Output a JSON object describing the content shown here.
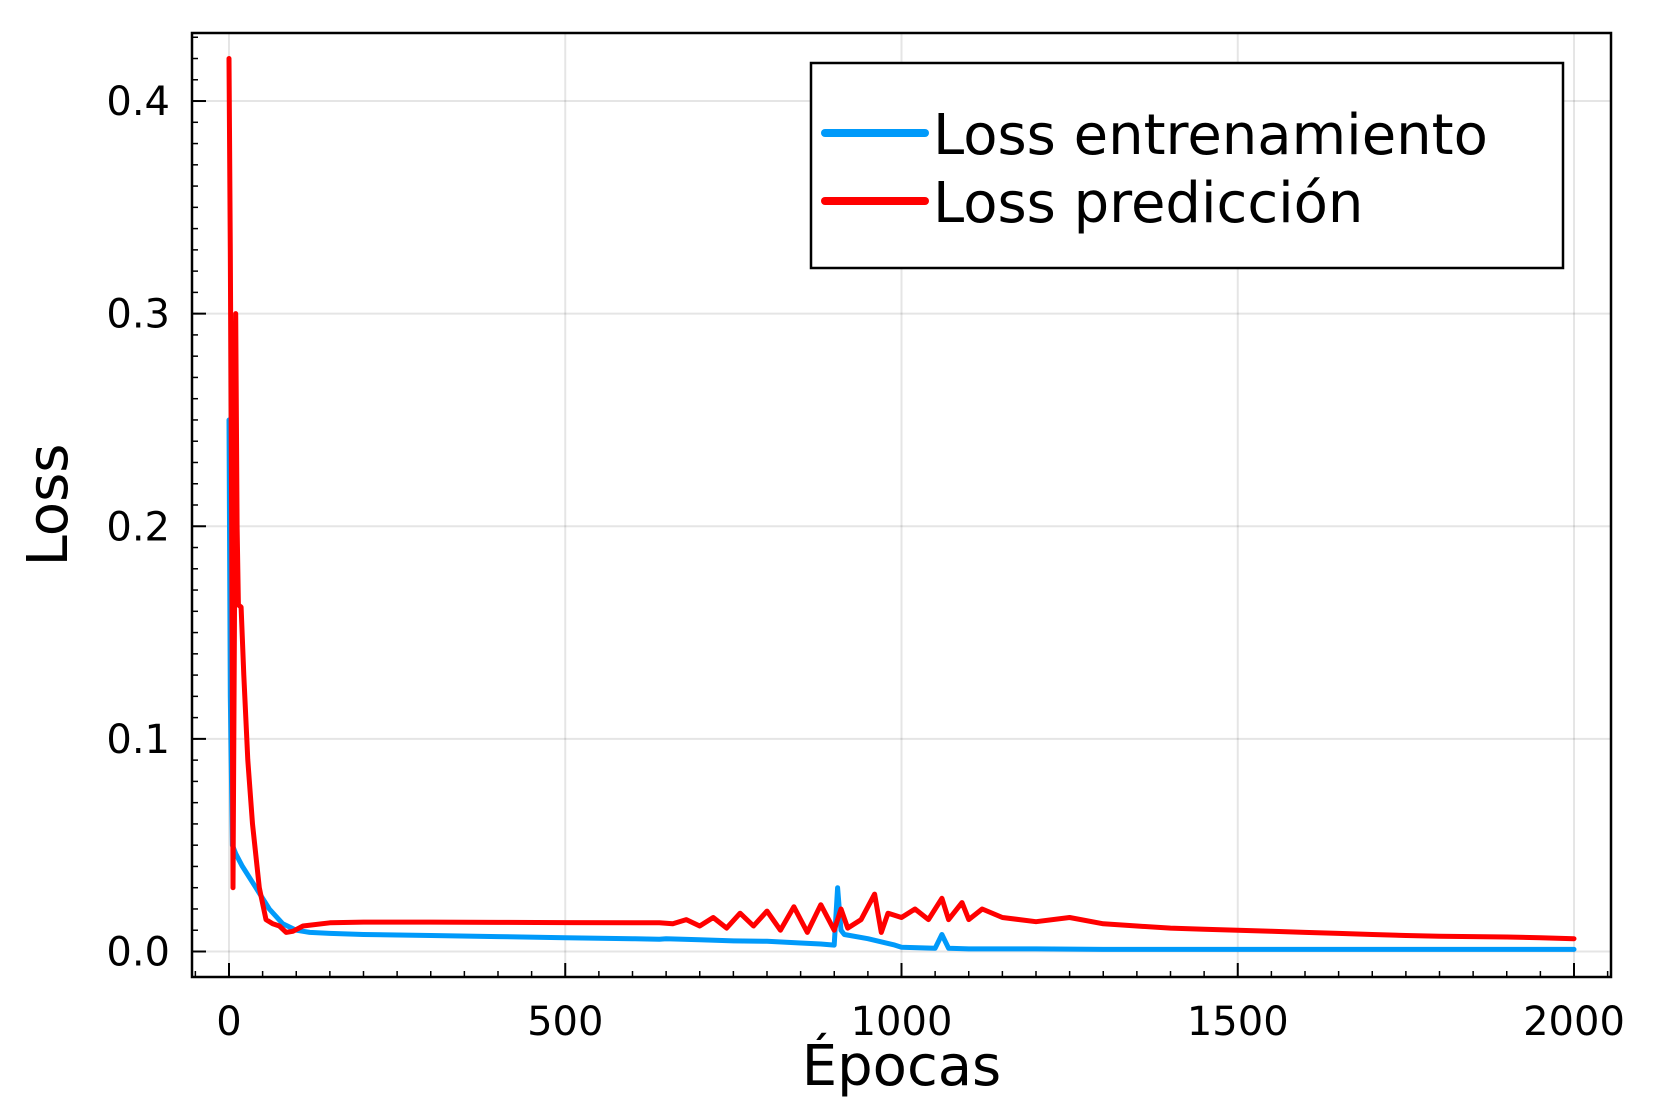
{
  "chart_data": {
    "type": "line",
    "xlabel": "Épocas",
    "ylabel": "Loss",
    "xlim": [
      -55,
      2055
    ],
    "ylim": [
      -0.012,
      0.432
    ],
    "xticks": [
      0,
      500,
      1000,
      1500,
      2000
    ],
    "xtick_labels": [
      "0",
      "500",
      "1000",
      "1500",
      "2000"
    ],
    "yticks": [
      0.0,
      0.1,
      0.2,
      0.3,
      0.4
    ],
    "ytick_labels": [
      "0.0",
      "0.1",
      "0.2",
      "0.3",
      "0.4"
    ],
    "grid": true,
    "legend_position": "top-right",
    "series": [
      {
        "name": "Loss entrenamiento",
        "color": "#009AFA",
        "x": [
          0,
          2,
          5,
          10,
          20,
          40,
          60,
          80,
          100,
          120,
          150,
          200,
          300,
          400,
          500,
          600,
          640,
          650,
          700,
          750,
          800,
          850,
          880,
          900,
          905,
          910,
          915,
          950,
          990,
          1000,
          1050,
          1060,
          1070,
          1100,
          1200,
          1300,
          1400,
          1500,
          1600,
          1700,
          1800,
          1900,
          2000
        ],
        "y": [
          0.25,
          0.12,
          0.05,
          0.046,
          0.04,
          0.03,
          0.02,
          0.013,
          0.01,
          0.009,
          0.0085,
          0.008,
          0.0075,
          0.007,
          0.0065,
          0.006,
          0.0058,
          0.006,
          0.0055,
          0.005,
          0.0048,
          0.004,
          0.0035,
          0.003,
          0.03,
          0.01,
          0.008,
          0.006,
          0.003,
          0.002,
          0.0015,
          0.008,
          0.0015,
          0.0012,
          0.0012,
          0.001,
          0.001,
          0.001,
          0.001,
          0.001,
          0.001,
          0.001,
          0.001
        ]
      },
      {
        "name": "Loss predicción",
        "color": "#FF0000",
        "x": [
          0,
          2,
          4,
          6,
          8,
          10,
          12,
          14,
          18,
          22,
          28,
          35,
          45,
          55,
          65,
          75,
          85,
          95,
          110,
          150,
          200,
          300,
          400,
          500,
          600,
          640,
          660,
          680,
          700,
          720,
          740,
          760,
          780,
          800,
          820,
          840,
          860,
          880,
          900,
          910,
          920,
          940,
          960,
          970,
          980,
          1000,
          1020,
          1040,
          1060,
          1070,
          1090,
          1100,
          1120,
          1150,
          1200,
          1250,
          1300,
          1350,
          1400,
          1450,
          1500,
          1550,
          1600,
          1650,
          1700,
          1750,
          1800,
          1850,
          1900,
          1950,
          2000
        ],
        "y": [
          0.42,
          0.33,
          0.2,
          0.03,
          0.15,
          0.3,
          0.2,
          0.163,
          0.162,
          0.13,
          0.09,
          0.06,
          0.03,
          0.015,
          0.013,
          0.012,
          0.009,
          0.0095,
          0.012,
          0.0135,
          0.0138,
          0.0138,
          0.0137,
          0.0136,
          0.0135,
          0.0135,
          0.013,
          0.015,
          0.012,
          0.016,
          0.011,
          0.018,
          0.012,
          0.019,
          0.01,
          0.021,
          0.009,
          0.022,
          0.01,
          0.02,
          0.011,
          0.015,
          0.027,
          0.009,
          0.018,
          0.016,
          0.02,
          0.015,
          0.025,
          0.015,
          0.023,
          0.015,
          0.02,
          0.016,
          0.014,
          0.016,
          0.013,
          0.012,
          0.011,
          0.0105,
          0.01,
          0.0095,
          0.009,
          0.0085,
          0.008,
          0.0075,
          0.0072,
          0.007,
          0.0068,
          0.0065,
          0.006
        ]
      }
    ]
  }
}
